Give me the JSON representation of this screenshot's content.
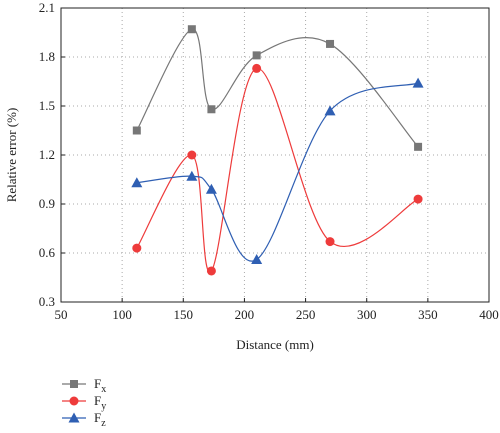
{
  "chart_data": {
    "type": "scatter",
    "xlabel": "Distance (mm)",
    "ylabel": "Relative error (%)",
    "xlim": [
      50,
      400
    ],
    "ylim": [
      0.3,
      2.1
    ],
    "x_ticks": [
      "50",
      "100",
      "150",
      "200",
      "250",
      "300",
      "350",
      "400"
    ],
    "y_ticks": [
      "0.3",
      "0.6",
      "0.9",
      "1.2",
      "1.5",
      "1.8",
      "2.1"
    ],
    "grid": true,
    "grid_style": "dotted",
    "smoothed_lines": true,
    "legend_position": "below-left",
    "series": [
      {
        "name": "F",
        "subscript": "x",
        "color": "#777777",
        "marker": "square",
        "x": [
          112,
          157,
          173,
          210,
          270,
          342
        ],
        "y": [
          1.35,
          1.97,
          1.48,
          1.81,
          1.88,
          1.25
        ]
      },
      {
        "name": "F",
        "subscript": "y",
        "color": "#ee3b3b",
        "marker": "circle",
        "x": [
          112,
          157,
          173,
          210,
          270,
          342
        ],
        "y": [
          0.63,
          1.2,
          0.49,
          1.73,
          0.67,
          0.93
        ]
      },
      {
        "name": "F",
        "subscript": "z",
        "color": "#2f5fb3",
        "marker": "triangle",
        "x": [
          112,
          157,
          173,
          210,
          270,
          342
        ],
        "y": [
          1.03,
          1.07,
          0.99,
          0.56,
          1.47,
          1.64
        ]
      }
    ]
  }
}
